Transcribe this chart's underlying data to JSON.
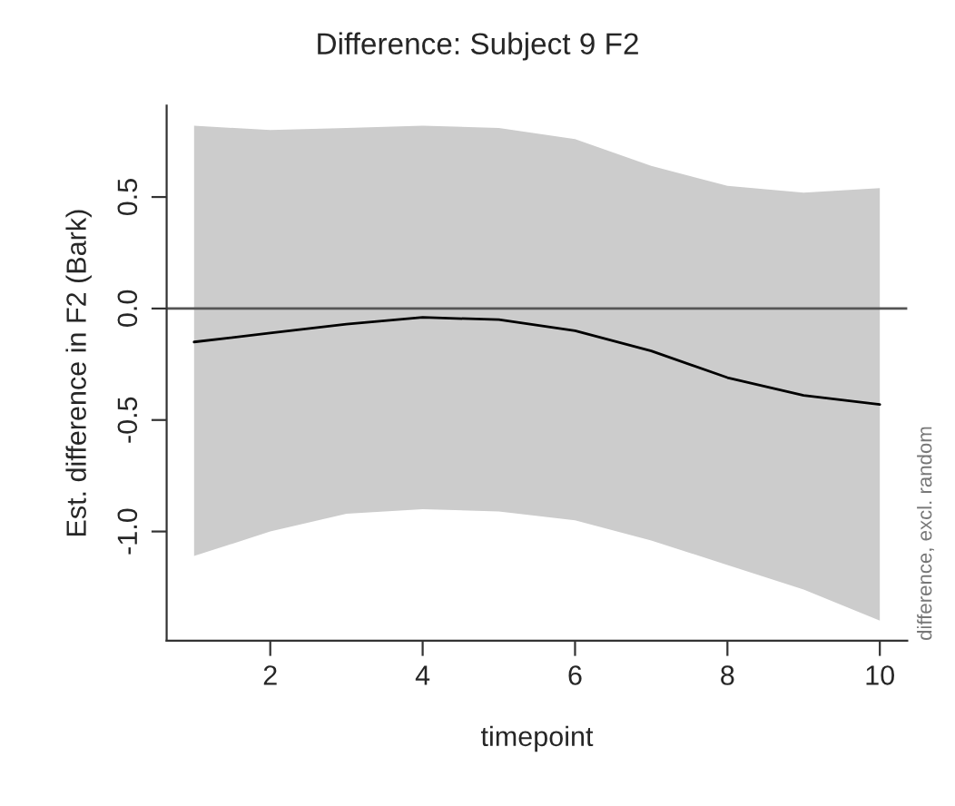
{
  "chart_data": {
    "type": "line",
    "title": "Difference: Subject 9 F2",
    "xlabel": "timepoint",
    "ylabel": "Est. difference in F2 (Bark)",
    "annotations": [
      "difference, excl. random"
    ],
    "x": [
      1,
      2,
      3,
      4,
      5,
      6,
      7,
      8,
      9,
      10
    ],
    "series": [
      {
        "color": "#000000",
        "values": [
          -0.15,
          -0.11,
          -0.07,
          -0.04,
          -0.05,
          -0.1,
          -0.19,
          -0.31,
          -0.39,
          -0.43
        ],
        "lower": [
          -1.11,
          -1.0,
          -0.92,
          -0.9,
          -0.91,
          -0.95,
          -1.04,
          -1.15,
          -1.26,
          -1.4
        ],
        "upper": [
          0.82,
          0.8,
          0.81,
          0.82,
          0.81,
          0.76,
          0.64,
          0.55,
          0.52,
          0.54
        ]
      }
    ],
    "ref_lines": [
      {
        "axis": "y",
        "value": 0,
        "color": "#555555"
      }
    ],
    "xlim": [
      0.64,
      10.36
    ],
    "ylim": [
      -1.49,
      0.91
    ],
    "xticks": [
      2,
      4,
      6,
      8,
      10
    ],
    "yticks": [
      {
        "value": -1,
        "label": "-1.0"
      },
      -0.5,
      {
        "value": 0,
        "label": "0.0"
      },
      0.5
    ],
    "grid": false,
    "legend": false,
    "marker": "none",
    "line_style": "solid"
  }
}
